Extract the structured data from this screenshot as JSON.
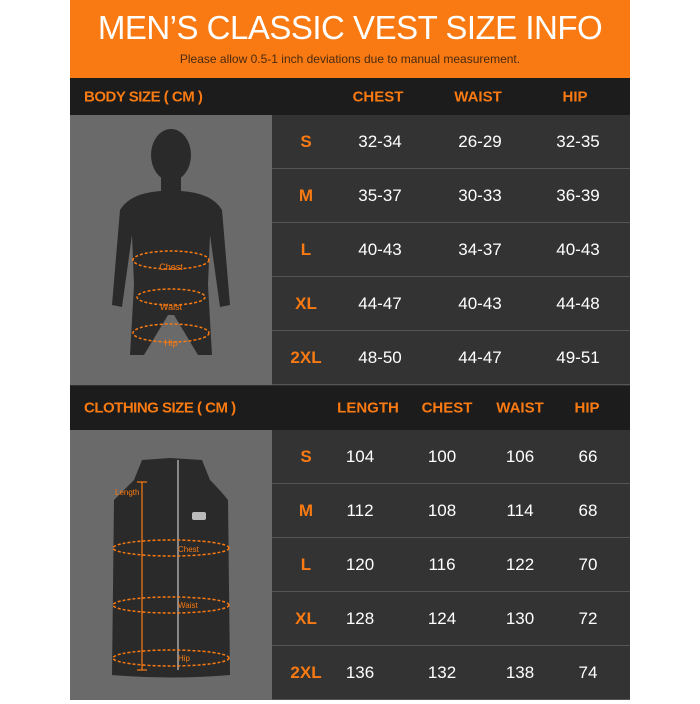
{
  "title": "MEN’S CLASSIC VEST SIZE INFO",
  "subtitle": "Please allow 0.5-1 inch deviations due to manual measurement.",
  "body_size": {
    "label": "BODY SIZE ( CM )",
    "headers": [
      "CHEST",
      "WAIST",
      "HIP"
    ],
    "figure_labels": {
      "chest": "Chest",
      "waist": "Waist",
      "hip": "Hip"
    },
    "rows": [
      {
        "size": "S",
        "chest": "32-34",
        "waist": "26-29",
        "hip": "32-35"
      },
      {
        "size": "M",
        "chest": "35-37",
        "waist": "30-33",
        "hip": "36-39"
      },
      {
        "size": "L",
        "chest": "40-43",
        "waist": "34-37",
        "hip": "40-43"
      },
      {
        "size": "XL",
        "chest": "44-47",
        "waist": "40-43",
        "hip": "44-48"
      },
      {
        "size": "2XL",
        "chest": "48-50",
        "waist": "44-47",
        "hip": "49-51"
      }
    ]
  },
  "clothing_size": {
    "label": "CLOTHING SIZE ( CM )",
    "headers": [
      "LENGTH",
      "CHEST",
      "WAIST",
      "HIP"
    ],
    "figure_labels": {
      "length": "Length",
      "chest": "Chest",
      "waist": "Waist",
      "hip": "Hip"
    },
    "rows": [
      {
        "size": "S",
        "length": "104",
        "chest": "100",
        "waist": "106",
        "hip": "66"
      },
      {
        "size": "M",
        "length": "112",
        "chest": "108",
        "waist": "114",
        "hip": "68"
      },
      {
        "size": "L",
        "length": "120",
        "chest": "116",
        "waist": "122",
        "hip": "70"
      },
      {
        "size": "XL",
        "length": "128",
        "chest": "124",
        "waist": "130",
        "hip": "72"
      },
      {
        "size": "2XL",
        "length": "136",
        "chest": "132",
        "waist": "138",
        "hip": "74"
      }
    ]
  },
  "colors": {
    "accent": "#f97a12",
    "header_bg": "#1c1c1c",
    "table_bg": "#333333",
    "panel_bg": "#6a6a6a"
  }
}
